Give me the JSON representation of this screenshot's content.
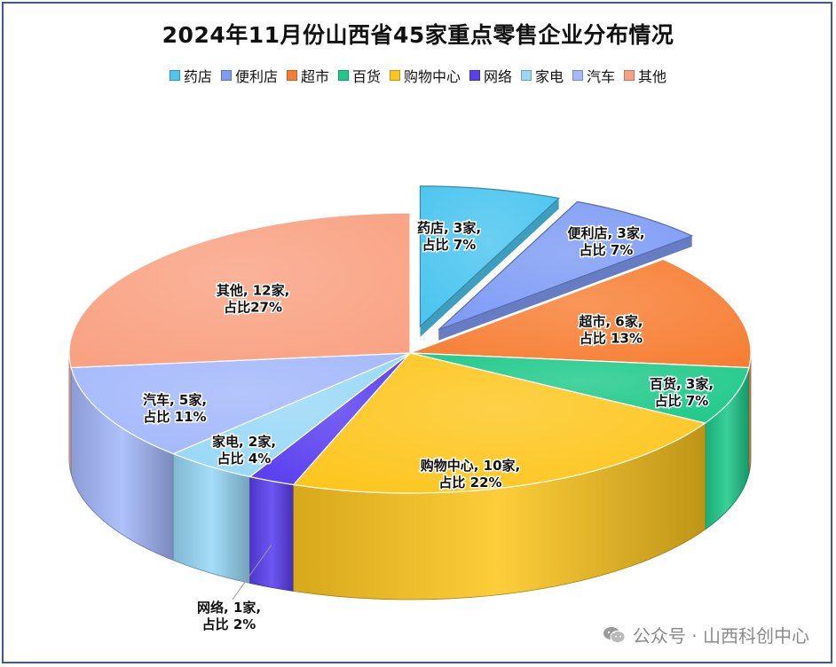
{
  "colors": {
    "药店": "#4cc5ef",
    "便利店": "#7f9cf5",
    "超市": "#f77f35",
    "百货": "#1fc98a",
    "购物中心": "#fdc61f",
    "网络": "#5a3ff0",
    "家电": "#98d8f7",
    "汽车": "#a4b8fb",
    "其他": "#f9a283"
  },
  "chart_data": {
    "type": "pie",
    "title": "2024年11月份山西省45家重点零售企业分布情况",
    "legend_position": "top",
    "style": "3d-exploded",
    "slices": [
      {
        "name": "药店",
        "value": 3,
        "percent": "7%",
        "label_line1": "药店, 3家,",
        "label_line2": "占比 7%",
        "exploded": true
      },
      {
        "name": "便利店",
        "value": 3,
        "percent": "7%",
        "label_line1": "便利店, 3家,",
        "label_line2": "占比 7%",
        "exploded": true
      },
      {
        "name": "超市",
        "value": 6,
        "percent": "13%",
        "label_line1": "超市, 6家,",
        "label_line2": "占比 13%",
        "exploded": false
      },
      {
        "name": "百货",
        "value": 3,
        "percent": "7%",
        "label_line1": "百货, 3家,",
        "label_line2": "占比 7%",
        "exploded": false
      },
      {
        "name": "购物中心",
        "value": 10,
        "percent": "22%",
        "label_line1": "购物中心, 10家,",
        "label_line2": "占比 22%",
        "exploded": false
      },
      {
        "name": "网络",
        "value": 1,
        "percent": "2%",
        "label_line1": "网络, 1家,",
        "label_line2": "占比 2%",
        "exploded": false
      },
      {
        "name": "家电",
        "value": 2,
        "percent": "4%",
        "label_line1": "家电, 2家,",
        "label_line2": "占比 4%",
        "exploded": false
      },
      {
        "name": "汽车",
        "value": 5,
        "percent": "11%",
        "label_line1": "汽车, 5家,",
        "label_line2": "占比 11%",
        "exploded": false
      },
      {
        "name": "其他",
        "value": 12,
        "percent": "27%",
        "label_line1": "其他, 12家,",
        "label_line2": "占比27%",
        "exploded": false
      }
    ]
  },
  "legend": [
    "药店",
    "便利店",
    "超市",
    "百货",
    "购物中心",
    "网络",
    "家电",
    "汽车",
    "其他"
  ],
  "watermark": {
    "text": "公众号 · 山西科创中心",
    "icon": "wechat-icon"
  }
}
